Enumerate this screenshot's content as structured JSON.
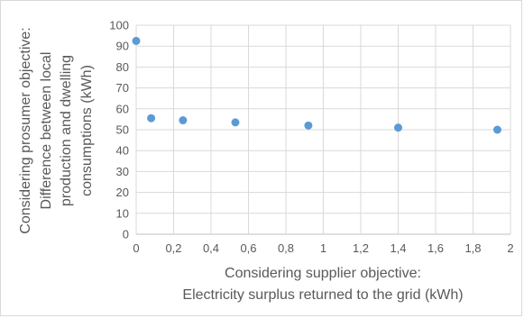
{
  "chart_data": {
    "type": "scatter",
    "title": "",
    "xlabel_lines": [
      "Considering supplier objective:",
      "Electricity surplus returned to the grid (kWh)"
    ],
    "ylabel_lines": [
      "Considering prosumer objective:",
      "Difference between local",
      "production and dwelling",
      "consumptions (kWh)"
    ],
    "xlim": [
      0,
      2
    ],
    "ylim": [
      0,
      100
    ],
    "x_ticks": [
      "0",
      "0,2",
      "0,4",
      "0,6",
      "0,8",
      "1",
      "1,2",
      "1,4",
      "1,6",
      "1,8",
      "2"
    ],
    "y_ticks": [
      "0",
      "10",
      "20",
      "30",
      "40",
      "50",
      "60",
      "70",
      "80",
      "90",
      "100"
    ],
    "grid": true,
    "series": [
      {
        "x": [
          0,
          0.08,
          0.25,
          0.53,
          0.92,
          1.4,
          1.93
        ],
        "y": [
          92.5,
          55.5,
          54.5,
          53.5,
          52,
          51,
          50
        ]
      }
    ],
    "colors": {
      "point": "#5b9bd5",
      "grid": "#d9d9d9",
      "text": "#595959"
    }
  }
}
